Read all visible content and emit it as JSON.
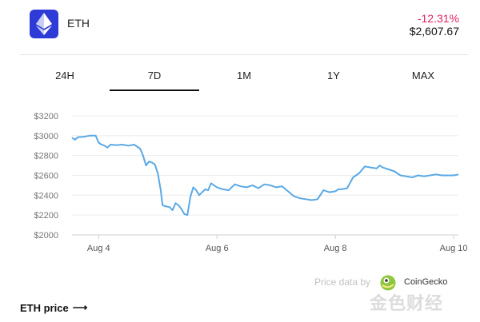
{
  "coin": {
    "symbol": "ETH",
    "change": "-12.31%",
    "price": "$2,607.67",
    "brand_color": "#2f3bd6",
    "change_color": "#e0245e"
  },
  "tabs": [
    {
      "label": "24H",
      "active": false
    },
    {
      "label": "7D",
      "active": true
    },
    {
      "label": "1M",
      "active": false
    },
    {
      "label": "1Y",
      "active": false
    },
    {
      "label": "MAX",
      "active": false
    }
  ],
  "chart_data": {
    "type": "line",
    "title": "",
    "xlabel": "",
    "ylabel": "",
    "ylim": [
      2000,
      3200
    ],
    "xlim": [
      3.55,
      10.08
    ],
    "yticks": [
      "$2000",
      "$2200",
      "$2400",
      "$2600",
      "$2800",
      "$3000",
      "$3200"
    ],
    "ytick_values": [
      2000,
      2200,
      2400,
      2600,
      2800,
      3000,
      3200
    ],
    "xticks": [
      "Aug 4",
      "Aug 6",
      "Aug 8",
      "Aug 10"
    ],
    "xtick_values": [
      4,
      6,
      8,
      10
    ],
    "grid": "horizontal",
    "line_color": "#5aa9e6",
    "series": [
      {
        "x": [
          3.55,
          3.6,
          3.65,
          3.75,
          3.85,
          3.95,
          4.0,
          4.05,
          4.1,
          4.15,
          4.2,
          4.3,
          4.4,
          4.5,
          4.6,
          4.7,
          4.75,
          4.8,
          4.85,
          4.9,
          4.95,
          5.0,
          5.05,
          5.08,
          5.12,
          5.2,
          5.25,
          5.3,
          5.35,
          5.4,
          5.45,
          5.5,
          5.55,
          5.6,
          5.65,
          5.7,
          5.75,
          5.8,
          5.85,
          5.9,
          6.0,
          6.1,
          6.2,
          6.3,
          6.4,
          6.5,
          6.6,
          6.7,
          6.8,
          6.9,
          7.0,
          7.1,
          7.2,
          7.3,
          7.4,
          7.5,
          7.6,
          7.7,
          7.8,
          7.9,
          8.0,
          8.05,
          8.1,
          8.2,
          8.3,
          8.4,
          8.5,
          8.6,
          8.7,
          8.75,
          8.8,
          8.9,
          9.0,
          9.1,
          9.2,
          9.3,
          9.4,
          9.5,
          9.6,
          9.7,
          9.8,
          9.9,
          10.0,
          10.08
        ],
        "y": [
          2980,
          2960,
          2985,
          2990,
          3000,
          3000,
          2930,
          2910,
          2900,
          2880,
          2910,
          2905,
          2910,
          2900,
          2910,
          2870,
          2800,
          2700,
          2740,
          2730,
          2710,
          2620,
          2450,
          2300,
          2290,
          2280,
          2250,
          2320,
          2300,
          2260,
          2210,
          2200,
          2380,
          2480,
          2450,
          2400,
          2430,
          2460,
          2450,
          2520,
          2480,
          2460,
          2450,
          2510,
          2490,
          2480,
          2500,
          2470,
          2510,
          2500,
          2480,
          2490,
          2440,
          2390,
          2370,
          2360,
          2350,
          2360,
          2450,
          2430,
          2440,
          2460,
          2460,
          2470,
          2580,
          2620,
          2690,
          2680,
          2670,
          2700,
          2680,
          2660,
          2640,
          2600,
          2590,
          2580,
          2600,
          2590,
          2600,
          2610,
          2600,
          2600,
          2600,
          2610
        ]
      }
    ]
  },
  "source": {
    "label": "Price data by",
    "provider": "CoinGecko"
  },
  "footer": {
    "link": "ETH price",
    "arrow": "⟶"
  },
  "watermark": "金色财经"
}
